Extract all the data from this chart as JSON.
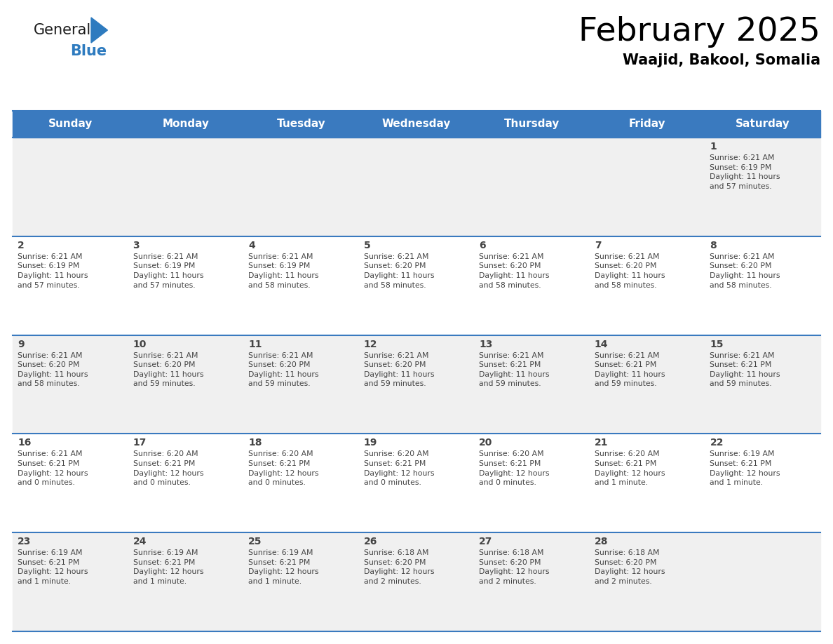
{
  "title": "February 2025",
  "subtitle": "Waajid, Bakool, Somalia",
  "header_bg_color": "#3a7abf",
  "header_text_color": "#ffffff",
  "cell_bg_even": "#f0f0f0",
  "cell_bg_odd": "#ffffff",
  "divider_color": "#3a7abf",
  "text_color": "#444444",
  "days_of_week": [
    "Sunday",
    "Monday",
    "Tuesday",
    "Wednesday",
    "Thursday",
    "Friday",
    "Saturday"
  ],
  "calendar": [
    [
      {
        "day": null,
        "info": null
      },
      {
        "day": null,
        "info": null
      },
      {
        "day": null,
        "info": null
      },
      {
        "day": null,
        "info": null
      },
      {
        "day": null,
        "info": null
      },
      {
        "day": null,
        "info": null
      },
      {
        "day": 1,
        "info": "Sunrise: 6:21 AM\nSunset: 6:19 PM\nDaylight: 11 hours\nand 57 minutes."
      }
    ],
    [
      {
        "day": 2,
        "info": "Sunrise: 6:21 AM\nSunset: 6:19 PM\nDaylight: 11 hours\nand 57 minutes."
      },
      {
        "day": 3,
        "info": "Sunrise: 6:21 AM\nSunset: 6:19 PM\nDaylight: 11 hours\nand 57 minutes."
      },
      {
        "day": 4,
        "info": "Sunrise: 6:21 AM\nSunset: 6:19 PM\nDaylight: 11 hours\nand 58 minutes."
      },
      {
        "day": 5,
        "info": "Sunrise: 6:21 AM\nSunset: 6:20 PM\nDaylight: 11 hours\nand 58 minutes."
      },
      {
        "day": 6,
        "info": "Sunrise: 6:21 AM\nSunset: 6:20 PM\nDaylight: 11 hours\nand 58 minutes."
      },
      {
        "day": 7,
        "info": "Sunrise: 6:21 AM\nSunset: 6:20 PM\nDaylight: 11 hours\nand 58 minutes."
      },
      {
        "day": 8,
        "info": "Sunrise: 6:21 AM\nSunset: 6:20 PM\nDaylight: 11 hours\nand 58 minutes."
      }
    ],
    [
      {
        "day": 9,
        "info": "Sunrise: 6:21 AM\nSunset: 6:20 PM\nDaylight: 11 hours\nand 58 minutes."
      },
      {
        "day": 10,
        "info": "Sunrise: 6:21 AM\nSunset: 6:20 PM\nDaylight: 11 hours\nand 59 minutes."
      },
      {
        "day": 11,
        "info": "Sunrise: 6:21 AM\nSunset: 6:20 PM\nDaylight: 11 hours\nand 59 minutes."
      },
      {
        "day": 12,
        "info": "Sunrise: 6:21 AM\nSunset: 6:20 PM\nDaylight: 11 hours\nand 59 minutes."
      },
      {
        "day": 13,
        "info": "Sunrise: 6:21 AM\nSunset: 6:21 PM\nDaylight: 11 hours\nand 59 minutes."
      },
      {
        "day": 14,
        "info": "Sunrise: 6:21 AM\nSunset: 6:21 PM\nDaylight: 11 hours\nand 59 minutes."
      },
      {
        "day": 15,
        "info": "Sunrise: 6:21 AM\nSunset: 6:21 PM\nDaylight: 11 hours\nand 59 minutes."
      }
    ],
    [
      {
        "day": 16,
        "info": "Sunrise: 6:21 AM\nSunset: 6:21 PM\nDaylight: 12 hours\nand 0 minutes."
      },
      {
        "day": 17,
        "info": "Sunrise: 6:20 AM\nSunset: 6:21 PM\nDaylight: 12 hours\nand 0 minutes."
      },
      {
        "day": 18,
        "info": "Sunrise: 6:20 AM\nSunset: 6:21 PM\nDaylight: 12 hours\nand 0 minutes."
      },
      {
        "day": 19,
        "info": "Sunrise: 6:20 AM\nSunset: 6:21 PM\nDaylight: 12 hours\nand 0 minutes."
      },
      {
        "day": 20,
        "info": "Sunrise: 6:20 AM\nSunset: 6:21 PM\nDaylight: 12 hours\nand 0 minutes."
      },
      {
        "day": 21,
        "info": "Sunrise: 6:20 AM\nSunset: 6:21 PM\nDaylight: 12 hours\nand 1 minute."
      },
      {
        "day": 22,
        "info": "Sunrise: 6:19 AM\nSunset: 6:21 PM\nDaylight: 12 hours\nand 1 minute."
      }
    ],
    [
      {
        "day": 23,
        "info": "Sunrise: 6:19 AM\nSunset: 6:21 PM\nDaylight: 12 hours\nand 1 minute."
      },
      {
        "day": 24,
        "info": "Sunrise: 6:19 AM\nSunset: 6:21 PM\nDaylight: 12 hours\nand 1 minute."
      },
      {
        "day": 25,
        "info": "Sunrise: 6:19 AM\nSunset: 6:21 PM\nDaylight: 12 hours\nand 1 minute."
      },
      {
        "day": 26,
        "info": "Sunrise: 6:18 AM\nSunset: 6:20 PM\nDaylight: 12 hours\nand 2 minutes."
      },
      {
        "day": 27,
        "info": "Sunrise: 6:18 AM\nSunset: 6:20 PM\nDaylight: 12 hours\nand 2 minutes."
      },
      {
        "day": 28,
        "info": "Sunrise: 6:18 AM\nSunset: 6:20 PM\nDaylight: 12 hours\nand 2 minutes."
      },
      {
        "day": null,
        "info": null
      }
    ]
  ],
  "logo_general_color": "#1a1a1a",
  "logo_blue_color": "#2e7bbf",
  "logo_triangle_color": "#2e7bbf",
  "fig_width": 11.88,
  "fig_height": 9.18,
  "dpi": 100
}
